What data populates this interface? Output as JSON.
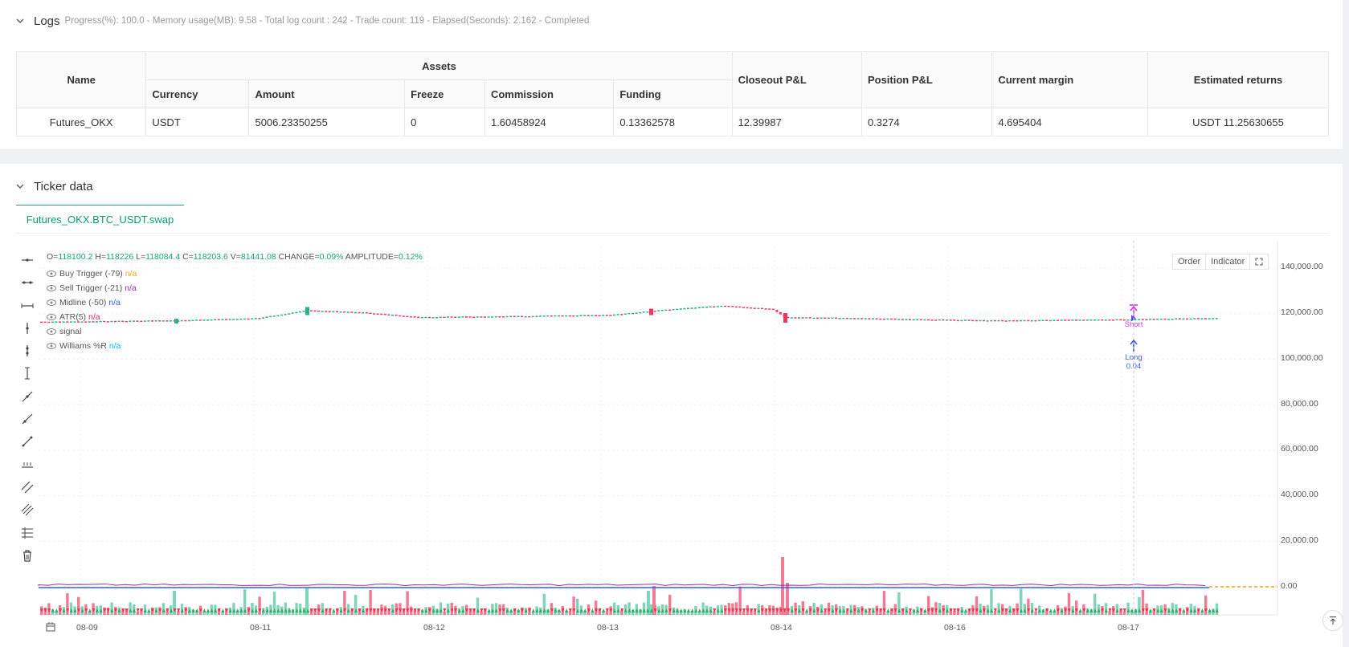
{
  "logs": {
    "title": "Logs",
    "summary": "Progress(%): 100.0  - Memory usage(MB): 9.58 - Total log count : 242 - Trade count: 119 - Elapsed(Seconds): 2.162 - Completed"
  },
  "assets_table": {
    "headers": {
      "name": "Name",
      "assets": "Assets",
      "currency": "Currency",
      "amount": "Amount",
      "freeze": "Freeze",
      "commission": "Commission",
      "funding": "Funding",
      "closeout_pnl": "Closeout P&L",
      "position_pnl": "Position P&L",
      "current_margin": "Current margin",
      "estimated_returns": "Estimated returns"
    },
    "row": {
      "name": "Futures_OKX",
      "currency": "USDT",
      "amount": "5006.23350255",
      "freeze": "0",
      "commission": "1.60458924",
      "funding": "0.13362578",
      "closeout_pnl": "12.39987",
      "position_pnl": "0.3274",
      "current_margin": "4.695404",
      "estimated_returns": "USDT 11.25630655"
    }
  },
  "ticker": {
    "title": "Ticker data",
    "tab_label": "Futures_OKX.BTC_USDT.swap",
    "ohlc": {
      "o_label": "O=",
      "o": "118100.2",
      "h_label": "H=",
      "h": "118226",
      "l_label": "L=",
      "l": "118084.4",
      "c_label": "C=",
      "c": "118203.6",
      "v_label": "V=",
      "v": "81441.08",
      "change_label": "CHANGE=",
      "change": "0.09%",
      "amplitude_label": "AMPLITUDE=",
      "amplitude": "0.12%"
    },
    "legend": [
      {
        "name": "Buy Trigger (-79)",
        "value": "n/a",
        "color": "#f0a020"
      },
      {
        "name": "Sell Trigger (-21)",
        "value": "n/a",
        "color": "#9c27b0"
      },
      {
        "name": "Midline (-50)",
        "value": "n/a",
        "color": "#2962ff"
      },
      {
        "name": "ATR(5)",
        "value": "n/a",
        "color": "#e91e63"
      },
      {
        "name": "signal",
        "value": "",
        "color": "#555555"
      },
      {
        "name": "Williams %R",
        "value": "n/a",
        "color": "#00bcd4"
      }
    ],
    "buttons": {
      "order": "Order",
      "indicator": "Indicator"
    },
    "markers": {
      "short": "Short",
      "long": "Long",
      "long_qty": "0.04"
    }
  },
  "chart_data": {
    "type": "candlestick",
    "y_ticks": [
      "140,000.00",
      "120,000.00",
      "100,000.00",
      "80,000.00",
      "60,000.00",
      "40,000.00",
      "20,000.00",
      "0.00"
    ],
    "x_ticks": [
      "08-09",
      "08-11",
      "08-12",
      "08-13",
      "08-14",
      "08-16",
      "08-17"
    ],
    "ylim": [
      0,
      150000
    ],
    "price_path": [
      {
        "date": "08-09",
        "close": 116500
      },
      {
        "date": "08-10",
        "close": 117800
      },
      {
        "date": "08-11",
        "close": 121500
      },
      {
        "date": "08-12",
        "close": 118500
      },
      {
        "date": "08-13",
        "close": 119500
      },
      {
        "date": "08-13",
        "close": 123500
      },
      {
        "date": "08-14",
        "close": 118500
      },
      {
        "date": "08-15",
        "close": 117800
      },
      {
        "date": "08-16",
        "close": 117200
      },
      {
        "date": "08-17",
        "close": 118200
      }
    ],
    "colors": {
      "up": "#26b28a",
      "down": "#f0385e",
      "volume_up": "#7ed6b8",
      "volume_down": "#f27a92",
      "accent": "#0a9a72"
    }
  }
}
